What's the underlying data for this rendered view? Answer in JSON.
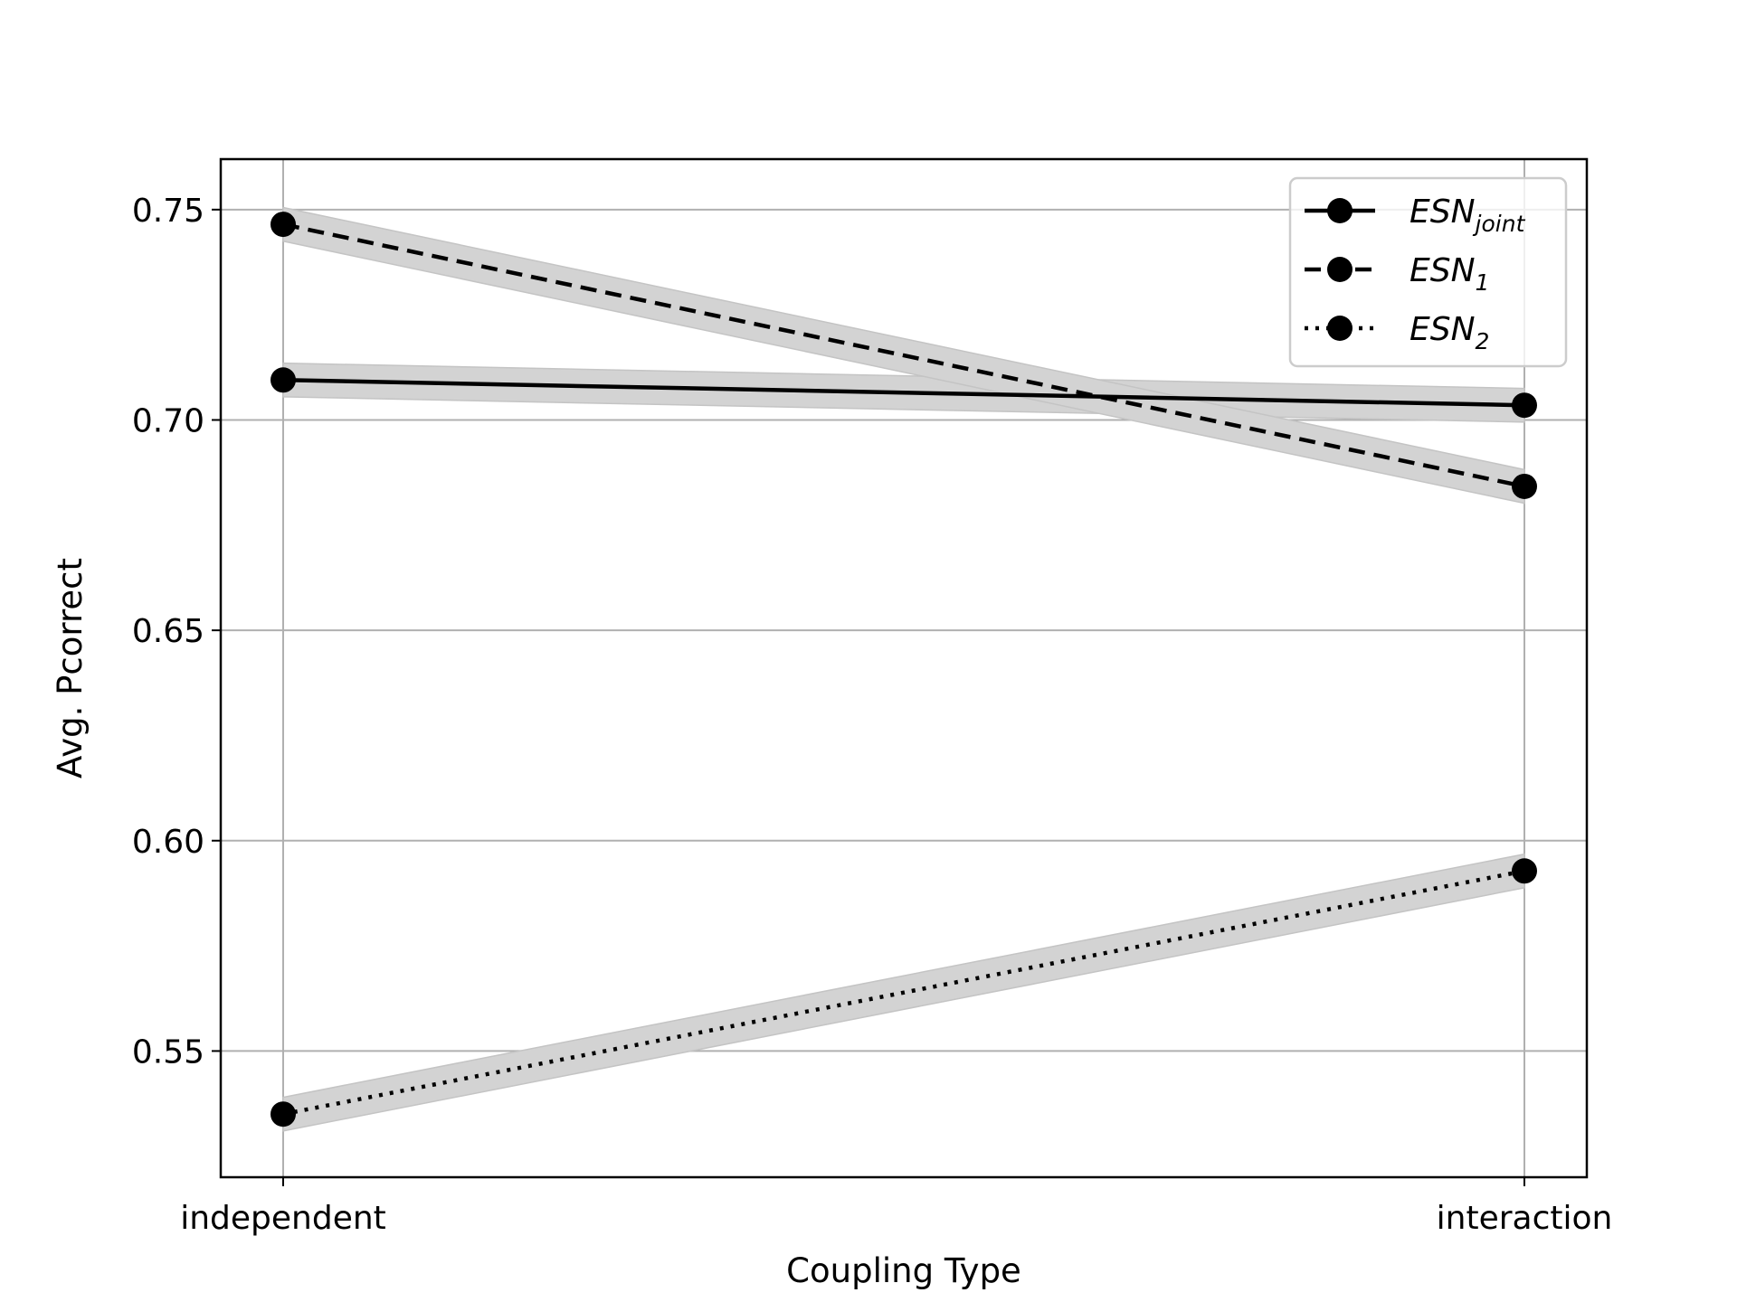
{
  "chart_data": {
    "type": "line",
    "title": "",
    "xlabel": "Coupling Type",
    "ylabel": "Avg. Pcorrect",
    "categories": [
      "independent",
      "interaction"
    ],
    "ylim": [
      0.52,
      0.762
    ],
    "yticks": [
      0.55,
      0.6,
      0.65,
      0.7,
      0.75
    ],
    "ytick_labels": [
      "0.55",
      "0.60",
      "0.65",
      "0.70",
      "0.75"
    ],
    "grid": true,
    "legend_position": "top-right",
    "band_color": "#d3d3d3",
    "line_color": "#000000",
    "series": [
      {
        "name": "ESN",
        "name_sub": "joint",
        "linestyle": "solid",
        "values": [
          0.7095,
          0.7035
        ],
        "band": [
          [
            0.7055,
            0.7135
          ],
          [
            0.6995,
            0.7075
          ]
        ]
      },
      {
        "name": "ESN",
        "name_sub": "1",
        "linestyle": "dashed",
        "values": [
          0.7465,
          0.6842
        ],
        "band": [
          [
            0.7425,
            0.7505
          ],
          [
            0.6802,
            0.6882
          ]
        ]
      },
      {
        "name": "ESN",
        "name_sub": "2",
        "linestyle": "dotted",
        "values": [
          0.535,
          0.5928
        ],
        "band": [
          [
            0.531,
            0.539
          ],
          [
            0.5888,
            0.5968
          ]
        ]
      }
    ]
  }
}
